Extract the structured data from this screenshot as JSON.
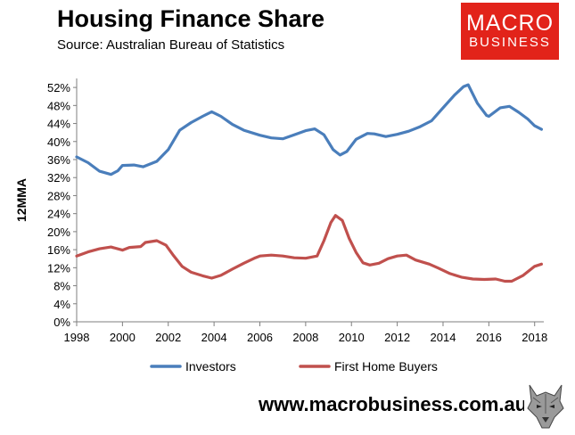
{
  "header": {
    "title": "Housing Finance Share",
    "source": "Source: Australian Bureau of Statistics"
  },
  "logo": {
    "line1": "MACRO",
    "line2": "BUSINESS",
    "color": "#e2231a"
  },
  "footer": {
    "url": "www.macrobusiness.com.au",
    "icon": "wolf-icon"
  },
  "chart_data": {
    "type": "line",
    "title": "",
    "xlabel": "",
    "ylabel": "12MMA",
    "xlim": [
      1998,
      2018.4
    ],
    "ylim": [
      0,
      54
    ],
    "x_ticks": [
      1998,
      2000,
      2002,
      2004,
      2006,
      2008,
      2010,
      2012,
      2014,
      2016,
      2018
    ],
    "y_ticks": [
      0,
      4,
      8,
      12,
      16,
      20,
      24,
      28,
      32,
      36,
      40,
      44,
      48,
      52
    ],
    "y_tick_format": "percent",
    "grid": false,
    "legend": "bottom",
    "series": [
      {
        "name": "Investors",
        "color": "#4a7ebb",
        "points": [
          [
            1998.0,
            36.6
          ],
          [
            1998.5,
            35.3
          ],
          [
            1999.0,
            33.4
          ],
          [
            1999.5,
            32.7
          ],
          [
            1999.8,
            33.5
          ],
          [
            2000.0,
            34.7
          ],
          [
            2000.5,
            34.8
          ],
          [
            2000.9,
            34.4
          ],
          [
            2001.5,
            35.6
          ],
          [
            2002.0,
            38.2
          ],
          [
            2002.5,
            42.5
          ],
          [
            2003.0,
            44.2
          ],
          [
            2003.5,
            45.6
          ],
          [
            2003.9,
            46.6
          ],
          [
            2004.3,
            45.6
          ],
          [
            2004.8,
            43.8
          ],
          [
            2005.3,
            42.5
          ],
          [
            2006.0,
            41.4
          ],
          [
            2006.5,
            40.8
          ],
          [
            2007.0,
            40.6
          ],
          [
            2007.5,
            41.5
          ],
          [
            2008.0,
            42.4
          ],
          [
            2008.4,
            42.8
          ],
          [
            2008.8,
            41.5
          ],
          [
            2009.2,
            38.2
          ],
          [
            2009.5,
            37.0
          ],
          [
            2009.8,
            37.8
          ],
          [
            2010.2,
            40.5
          ],
          [
            2010.7,
            41.8
          ],
          [
            2011.0,
            41.7
          ],
          [
            2011.5,
            41.1
          ],
          [
            2012.0,
            41.6
          ],
          [
            2012.5,
            42.3
          ],
          [
            2013.0,
            43.3
          ],
          [
            2013.5,
            44.6
          ],
          [
            2014.0,
            47.5
          ],
          [
            2014.5,
            50.3
          ],
          [
            2014.9,
            52.2
          ],
          [
            2015.1,
            52.6
          ],
          [
            2015.5,
            48.5
          ],
          [
            2015.9,
            45.8
          ],
          [
            2016.0,
            45.6
          ],
          [
            2016.5,
            47.5
          ],
          [
            2016.9,
            47.8
          ],
          [
            2017.3,
            46.5
          ],
          [
            2017.7,
            45.0
          ],
          [
            2018.0,
            43.5
          ],
          [
            2018.3,
            42.7
          ]
        ]
      },
      {
        "name": "First Home Buyers",
        "color": "#c0504d",
        "points": [
          [
            1998.0,
            14.6
          ],
          [
            1998.5,
            15.5
          ],
          [
            1999.0,
            16.2
          ],
          [
            1999.5,
            16.6
          ],
          [
            2000.0,
            15.9
          ],
          [
            2000.3,
            16.5
          ],
          [
            2000.8,
            16.7
          ],
          [
            2001.0,
            17.6
          ],
          [
            2001.5,
            18.0
          ],
          [
            2001.9,
            17.0
          ],
          [
            2002.2,
            14.9
          ],
          [
            2002.6,
            12.3
          ],
          [
            2003.0,
            11.0
          ],
          [
            2003.5,
            10.2
          ],
          [
            2003.9,
            9.7
          ],
          [
            2004.3,
            10.3
          ],
          [
            2004.8,
            11.7
          ],
          [
            2005.3,
            13.0
          ],
          [
            2005.8,
            14.2
          ],
          [
            2006.0,
            14.6
          ],
          [
            2006.5,
            14.8
          ],
          [
            2007.0,
            14.6
          ],
          [
            2007.5,
            14.2
          ],
          [
            2008.0,
            14.1
          ],
          [
            2008.5,
            14.6
          ],
          [
            2008.8,
            18.0
          ],
          [
            2009.1,
            22.0
          ],
          [
            2009.3,
            23.6
          ],
          [
            2009.6,
            22.5
          ],
          [
            2009.9,
            18.5
          ],
          [
            2010.2,
            15.4
          ],
          [
            2010.5,
            13.1
          ],
          [
            2010.8,
            12.6
          ],
          [
            2011.2,
            13.0
          ],
          [
            2011.6,
            14.0
          ],
          [
            2012.0,
            14.6
          ],
          [
            2012.4,
            14.8
          ],
          [
            2012.8,
            13.7
          ],
          [
            2013.4,
            12.8
          ],
          [
            2013.8,
            11.9
          ],
          [
            2014.3,
            10.7
          ],
          [
            2014.8,
            9.9
          ],
          [
            2015.3,
            9.5
          ],
          [
            2015.8,
            9.4
          ],
          [
            2016.3,
            9.5
          ],
          [
            2016.7,
            9.0
          ],
          [
            2017.0,
            9.0
          ],
          [
            2017.5,
            10.3
          ],
          [
            2018.0,
            12.3
          ],
          [
            2018.3,
            12.8
          ]
        ]
      }
    ]
  }
}
